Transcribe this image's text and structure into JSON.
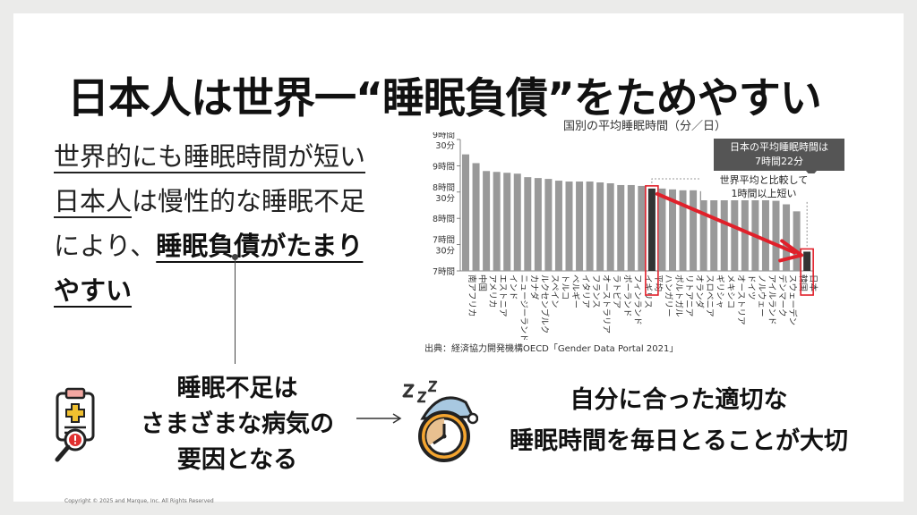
{
  "title": "日本人は世界一“睡眠負債”をためやすい",
  "lead": {
    "line1": "世界的にも睡眠時間が短い",
    "line2_ul": "日本人",
    "line2_rest": "は慢性的な睡眠不足",
    "line3_pre": "により、",
    "line3_bold": "睡眠負債がたまり",
    "line4_bold": "やすい"
  },
  "cause": {
    "line1": "睡眠不足は",
    "line2": "さまざまな病気の",
    "line3": "要因となる"
  },
  "advice": {
    "line1": "自分に合った適切な",
    "line2": "睡眠時間を毎日とることが大切"
  },
  "copyright": "Copyright © 2025 and Marque, Inc. All Rights Reserved",
  "icons": {
    "clipboard": "medical-clipboard-icon",
    "clock": "sleeping-clock-icon",
    "zzz": "zzz-icon"
  },
  "colors": {
    "bar": "#999999",
    "highlight_bar": "#333333",
    "highlight_box": "#e0202a",
    "arrow": "#e0202a",
    "callout_bg": "#555555"
  },
  "chart_data": {
    "type": "bar",
    "title": "国別の平均睡眠時間（分／日）",
    "source": "出典：経済協力開発機構OECD「Gender Data Portal 2021」",
    "y_tick_labels": [
      [
        "9時間",
        "30分"
      ],
      [
        "9時間"
      ],
      [
        "8時間",
        "30分"
      ],
      [
        "8時間"
      ],
      [
        "7時間",
        "30分"
      ],
      [
        "7時間"
      ]
    ],
    "ylim": [
      420,
      570
    ],
    "categories": [
      "南アフリカ",
      "中国",
      "アメリカ",
      "エストニア",
      "インド",
      "ニュージーランド",
      "カナダ",
      "ルクセンブルク",
      "スペイン",
      "トルコ",
      "ベルギー",
      "イタリア",
      "フランス",
      "オーストラリア",
      "ラトビア",
      "ポーランド",
      "フィンランド",
      "イギリス",
      "平均",
      "ハンガリー",
      "ポルトガル",
      "リトアニア",
      "オランダ",
      "スロベニア",
      "ギリシャ",
      "メキシコ",
      "オーストリア",
      "ドイツ",
      "ノルウェー",
      "アイルランド",
      "デンマーク",
      "スウェーデン",
      "韓国",
      "日本"
    ],
    "values": [
      553,
      543,
      534,
      533,
      532,
      531,
      527,
      526,
      525,
      523,
      522,
      522,
      522,
      521,
      520,
      518,
      518,
      517,
      514,
      514,
      513,
      512,
      512,
      511,
      510,
      509,
      508,
      507,
      503,
      502,
      500,
      496,
      488,
      442
    ],
    "highlighted": [
      "平均",
      "日本"
    ],
    "callout": {
      "line1": "日本の平均睡眠時間は",
      "line2": "7時間22分"
    },
    "comparison": {
      "line1": "世界平均と比較して",
      "line2": "1時間以上短い"
    }
  }
}
